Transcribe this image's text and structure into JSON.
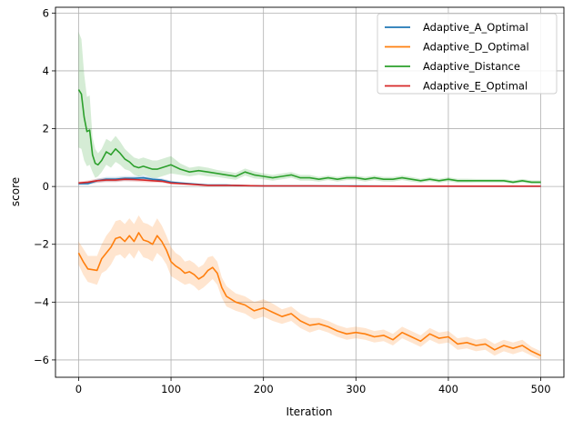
{
  "chart_data": {
    "type": "line",
    "title": "",
    "xlabel": "Iteration",
    "ylabel": "score",
    "xlim": [
      -25,
      525
    ],
    "ylim": [
      -6.6,
      6.2
    ],
    "x_ticks": [
      0,
      100,
      200,
      300,
      400,
      500
    ],
    "y_ticks": [
      -6,
      -4,
      -2,
      0,
      2,
      4,
      6
    ],
    "grid": true,
    "legend_position": "top-right",
    "series": [
      {
        "name": "Adaptive_A_Optimal",
        "color": "#1f77b4",
        "x": [
          0,
          10,
          20,
          30,
          40,
          50,
          60,
          70,
          80,
          90,
          100,
          110,
          120,
          140,
          160,
          180,
          200,
          250,
          300,
          350,
          400,
          450,
          500
        ],
        "y": [
          0.1,
          0.1,
          0.2,
          0.25,
          0.25,
          0.28,
          0.28,
          0.3,
          0.25,
          0.22,
          0.15,
          0.12,
          0.1,
          0.05,
          0.05,
          0.03,
          0.02,
          0.02,
          0.02,
          0.01,
          0.01,
          0.01,
          0.01
        ],
        "band": [
          0.05,
          0.05,
          0.07,
          0.08,
          0.08,
          0.08,
          0.08,
          0.08,
          0.06,
          0.06,
          0.05,
          0.04,
          0.03,
          0.02,
          0.02,
          0.01,
          0.01,
          0.01,
          0.01,
          0.01,
          0.01,
          0.01,
          0.01
        ]
      },
      {
        "name": "Adaptive_D_Optimal",
        "color": "#ff7f0e",
        "x": [
          0,
          5,
          10,
          20,
          25,
          30,
          35,
          40,
          45,
          50,
          55,
          60,
          65,
          70,
          75,
          80,
          85,
          90,
          95,
          100,
          105,
          110,
          115,
          120,
          125,
          130,
          135,
          140,
          145,
          150,
          155,
          160,
          170,
          180,
          190,
          200,
          210,
          220,
          230,
          240,
          250,
          260,
          270,
          280,
          290,
          300,
          310,
          320,
          330,
          340,
          350,
          360,
          370,
          380,
          390,
          400,
          410,
          420,
          430,
          440,
          450,
          460,
          470,
          480,
          490,
          500
        ],
        "y": [
          -2.3,
          -2.6,
          -2.85,
          -2.9,
          -2.5,
          -2.3,
          -2.1,
          -1.8,
          -1.75,
          -1.9,
          -1.7,
          -1.9,
          -1.6,
          -1.85,
          -1.9,
          -2.0,
          -1.7,
          -1.9,
          -2.2,
          -2.6,
          -2.75,
          -2.85,
          -3.0,
          -2.95,
          -3.05,
          -3.2,
          -3.1,
          -2.9,
          -2.8,
          -3.0,
          -3.5,
          -3.8,
          -4.0,
          -4.1,
          -4.3,
          -4.2,
          -4.35,
          -4.5,
          -4.4,
          -4.65,
          -4.8,
          -4.75,
          -4.85,
          -5.0,
          -5.1,
          -5.05,
          -5.1,
          -5.2,
          -5.15,
          -5.3,
          -5.05,
          -5.2,
          -5.35,
          -5.1,
          -5.25,
          -5.2,
          -5.45,
          -5.4,
          -5.5,
          -5.45,
          -5.65,
          -5.5,
          -5.6,
          -5.5,
          -5.7,
          -5.85
        ],
        "band": [
          0.4,
          0.45,
          0.45,
          0.5,
          0.5,
          0.6,
          0.6,
          0.6,
          0.6,
          0.6,
          0.6,
          0.6,
          0.6,
          0.6,
          0.6,
          0.6,
          0.6,
          0.55,
          0.5,
          0.5,
          0.45,
          0.45,
          0.4,
          0.4,
          0.4,
          0.4,
          0.4,
          0.45,
          0.4,
          0.4,
          0.35,
          0.35,
          0.3,
          0.3,
          0.3,
          0.3,
          0.3,
          0.25,
          0.25,
          0.25,
          0.25,
          0.2,
          0.2,
          0.2,
          0.2,
          0.2,
          0.2,
          0.2,
          0.2,
          0.2,
          0.2,
          0.2,
          0.2,
          0.2,
          0.2,
          0.2,
          0.2,
          0.2,
          0.2,
          0.2,
          0.2,
          0.2,
          0.2,
          0.2,
          0.15,
          0.15
        ]
      },
      {
        "name": "Adaptive_Distance",
        "color": "#2ca02c",
        "x": [
          0,
          3,
          6,
          9,
          12,
          15,
          18,
          21,
          25,
          30,
          35,
          40,
          45,
          50,
          55,
          60,
          65,
          70,
          75,
          80,
          85,
          90,
          95,
          100,
          110,
          120,
          130,
          140,
          150,
          160,
          170,
          180,
          190,
          200,
          210,
          220,
          230,
          240,
          250,
          260,
          270,
          280,
          290,
          300,
          310,
          320,
          330,
          340,
          350,
          360,
          370,
          380,
          390,
          400,
          410,
          420,
          430,
          440,
          450,
          460,
          470,
          480,
          490,
          500
        ],
        "y": [
          3.35,
          3.2,
          2.4,
          1.9,
          1.95,
          1.1,
          0.8,
          0.75,
          0.9,
          1.2,
          1.1,
          1.3,
          1.15,
          0.95,
          0.85,
          0.7,
          0.65,
          0.7,
          0.65,
          0.6,
          0.6,
          0.65,
          0.7,
          0.75,
          0.6,
          0.5,
          0.55,
          0.5,
          0.45,
          0.4,
          0.35,
          0.5,
          0.4,
          0.35,
          0.3,
          0.35,
          0.4,
          0.3,
          0.3,
          0.25,
          0.3,
          0.25,
          0.3,
          0.3,
          0.25,
          0.3,
          0.25,
          0.25,
          0.3,
          0.25,
          0.2,
          0.25,
          0.2,
          0.25,
          0.2,
          0.2,
          0.2,
          0.2,
          0.2,
          0.2,
          0.15,
          0.2,
          0.15,
          0.15
        ],
        "band": [
          2.0,
          1.9,
          1.5,
          1.2,
          1.2,
          0.6,
          0.5,
          0.4,
          0.4,
          0.45,
          0.45,
          0.45,
          0.4,
          0.35,
          0.3,
          0.3,
          0.3,
          0.3,
          0.3,
          0.3,
          0.3,
          0.3,
          0.3,
          0.3,
          0.2,
          0.15,
          0.15,
          0.15,
          0.12,
          0.12,
          0.12,
          0.12,
          0.12,
          0.1,
          0.1,
          0.1,
          0.1,
          0.1,
          0.1,
          0.08,
          0.08,
          0.08,
          0.08,
          0.08,
          0.08,
          0.08,
          0.08,
          0.08,
          0.08,
          0.08,
          0.07,
          0.07,
          0.07,
          0.07,
          0.07,
          0.07,
          0.06,
          0.06,
          0.06,
          0.06,
          0.06,
          0.06,
          0.06,
          0.06
        ]
      },
      {
        "name": "Adaptive_E_Optimal",
        "color": "#d62728",
        "x": [
          0,
          10,
          20,
          30,
          40,
          50,
          60,
          70,
          80,
          90,
          100,
          110,
          120,
          140,
          160,
          180,
          200,
          250,
          300,
          350,
          400,
          450,
          500
        ],
        "y": [
          0.12,
          0.15,
          0.2,
          0.22,
          0.22,
          0.25,
          0.24,
          0.22,
          0.2,
          0.18,
          0.12,
          0.1,
          0.08,
          0.04,
          0.04,
          0.03,
          0.02,
          0.02,
          0.01,
          0.01,
          0.01,
          0.01,
          0.01
        ],
        "band": [
          0.05,
          0.06,
          0.07,
          0.07,
          0.07,
          0.07,
          0.07,
          0.07,
          0.06,
          0.05,
          0.05,
          0.04,
          0.03,
          0.02,
          0.02,
          0.01,
          0.01,
          0.01,
          0.01,
          0.01,
          0.01,
          0.01,
          0.01
        ]
      }
    ]
  }
}
